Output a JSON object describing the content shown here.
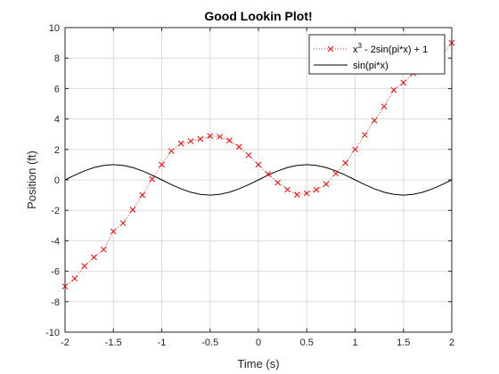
{
  "chart_data": {
    "type": "line",
    "title": "Good Lookin Plot!",
    "xlabel": "Time (s)",
    "ylabel": "Position (ft)",
    "xlim": [
      -2,
      2
    ],
    "ylim": [
      -10,
      10
    ],
    "x_ticks": [
      -2,
      -1.5,
      -1,
      -0.5,
      0,
      0.5,
      1,
      1.5,
      2
    ],
    "y_ticks": [
      -10,
      -8,
      -6,
      -4,
      -2,
      0,
      2,
      4,
      6,
      8,
      10
    ],
    "x_tick_labels": [
      "-2",
      "-1.5",
      "-1",
      "-0.5",
      "0",
      "0.5",
      "1",
      "1.5",
      "2"
    ],
    "y_tick_labels": [
      "-10",
      "-8",
      "-6",
      "-4",
      "-2",
      "0",
      "2",
      "4",
      "6",
      "8",
      "10"
    ],
    "grid": true,
    "legend_position": "top-right",
    "series": [
      {
        "name": "x3 - 2sin(pi*x) + 1",
        "legend_base": "x",
        "legend_sup": "3",
        "legend_rest": " - 2sin(pi*x) + 1",
        "color": "#ff0000",
        "line_style": "dotted",
        "marker": "x",
        "x": [
          -2.0,
          -1.9,
          -1.8,
          -1.7,
          -1.6,
          -1.5,
          -1.4,
          -1.3,
          -1.2,
          -1.1,
          -1.0,
          -0.9,
          -0.8,
          -0.7,
          -0.6,
          -0.5,
          -0.4,
          -0.3,
          -0.2,
          -0.1,
          0.0,
          0.1,
          0.2,
          0.3,
          0.4,
          0.5,
          0.6,
          0.7,
          0.8,
          0.9,
          1.0,
          1.1,
          1.2,
          1.3,
          1.4,
          1.5,
          1.6,
          1.7,
          1.8,
          1.9,
          2.0
        ],
        "y": [
          -7.0,
          -6.48,
          -5.66,
          -5.08,
          -4.58,
          -3.38,
          -2.84,
          -1.96,
          -1.0,
          0.05,
          1.0,
          1.89,
          2.39,
          2.54,
          2.69,
          2.88,
          2.84,
          2.59,
          2.17,
          1.62,
          1.0,
          0.38,
          -0.18,
          -0.64,
          -0.97,
          -0.88,
          -0.65,
          -0.28,
          0.42,
          1.11,
          2.0,
          2.95,
          3.9,
          4.82,
          5.9,
          6.38,
          7.0,
          7.53,
          7.76,
          8.17,
          9.0
        ]
      },
      {
        "name": "sin(pi*x)",
        "color": "#000000",
        "line_style": "solid",
        "marker": "none",
        "x": [
          -2.0,
          -1.9,
          -1.8,
          -1.7,
          -1.6,
          -1.5,
          -1.4,
          -1.3,
          -1.2,
          -1.1,
          -1.0,
          -0.9,
          -0.8,
          -0.7,
          -0.6,
          -0.5,
          -0.4,
          -0.3,
          -0.2,
          -0.1,
          0.0,
          0.1,
          0.2,
          0.3,
          0.4,
          0.5,
          0.6,
          0.7,
          0.8,
          0.9,
          1.0,
          1.1,
          1.2,
          1.3,
          1.4,
          1.5,
          1.6,
          1.7,
          1.8,
          1.9,
          2.0
        ],
        "y": [
          0.0,
          0.309,
          0.588,
          0.809,
          0.951,
          1.0,
          0.951,
          0.809,
          0.588,
          0.309,
          0.0,
          -0.309,
          -0.588,
          -0.809,
          -0.951,
          -1.0,
          -0.951,
          -0.809,
          -0.588,
          -0.309,
          0.0,
          0.309,
          0.588,
          0.809,
          0.951,
          1.0,
          0.951,
          0.809,
          0.588,
          0.309,
          0.0,
          -0.309,
          -0.588,
          -0.809,
          -0.951,
          -1.0,
          -0.951,
          -0.809,
          -0.588,
          -0.309,
          0.0
        ]
      }
    ]
  }
}
